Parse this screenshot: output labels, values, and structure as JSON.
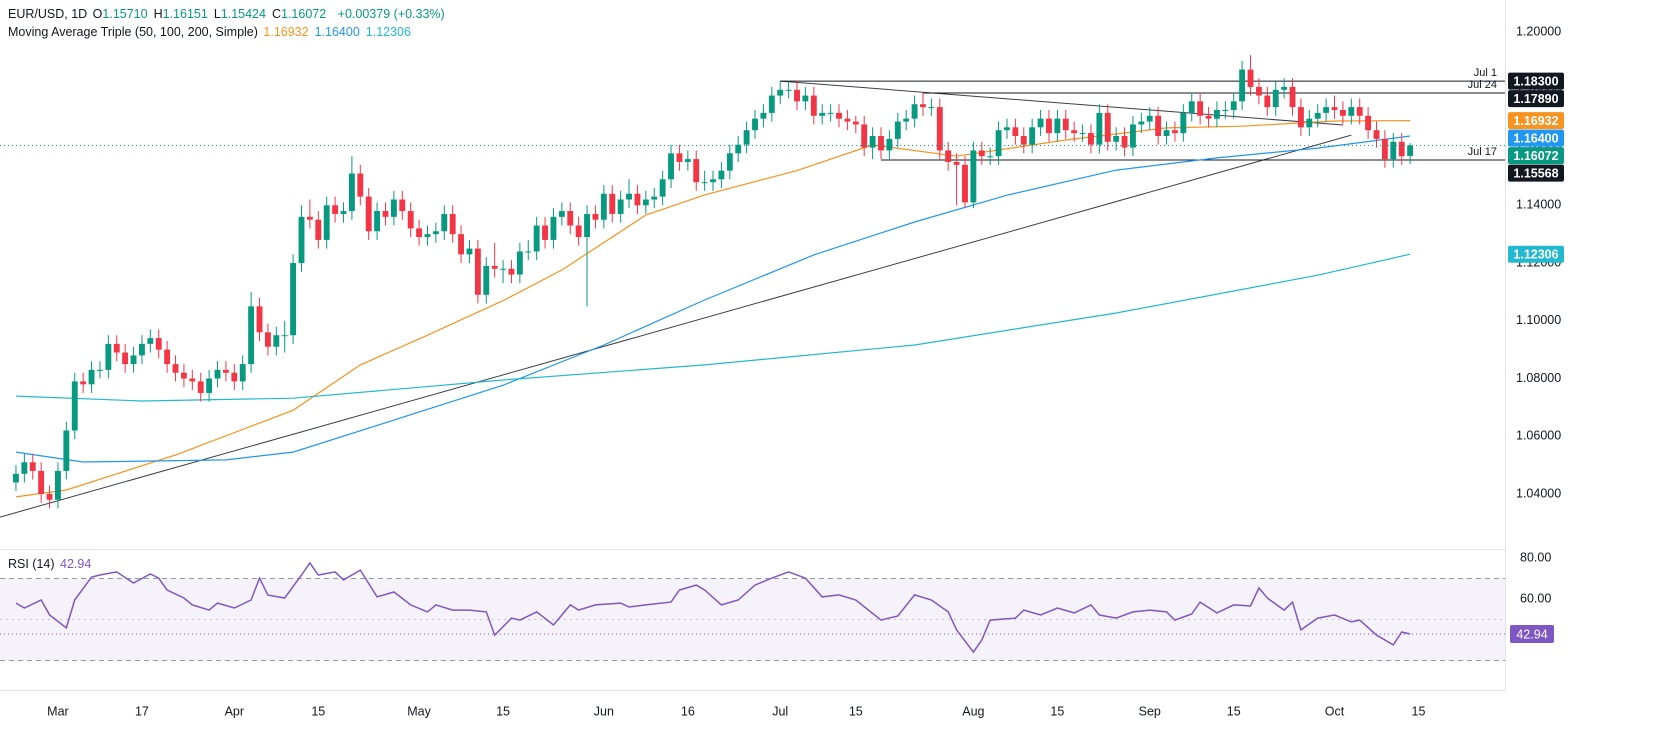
{
  "chart_data": [
    {
      "type": "candlestick",
      "title": "EUR/USD, 1D",
      "ohlc": [
        {
          "label": "O",
          "value": "1.15710"
        },
        {
          "label": "H",
          "value": "1.16151"
        },
        {
          "label": "L",
          "value": "1.15424"
        },
        {
          "label": "C",
          "value": "1.16072"
        }
      ],
      "change": "+0.00379 (+0.33%)",
      "last_label": "1.16072",
      "up_color": "#089981",
      "down_color": "#f23645",
      "xlim": [
        -1.9,
        177.3
      ],
      "xticks": [
        {
          "value": 5,
          "label": "Mar"
        },
        {
          "value": 15,
          "label": "17"
        },
        {
          "value": 26,
          "label": "Apr"
        },
        {
          "value": 36,
          "label": "15"
        },
        {
          "value": 48,
          "label": "May"
        },
        {
          "value": 58,
          "label": "15"
        },
        {
          "value": 70,
          "label": "Jun"
        },
        {
          "value": 80,
          "label": "16"
        },
        {
          "value": 91,
          "label": "Jul"
        },
        {
          "value": 100,
          "label": "15"
        },
        {
          "value": 114,
          "label": "Aug"
        },
        {
          "value": 124,
          "label": "15"
        },
        {
          "value": 135,
          "label": "Sep"
        },
        {
          "value": 145,
          "label": "15"
        },
        {
          "value": 157,
          "label": "Oct"
        },
        {
          "value": 167,
          "label": "15"
        }
      ],
      "ylim": [
        1.0213,
        1.2111
      ],
      "yticks": [
        {
          "value": 1.04,
          "label": "1.04000"
        },
        {
          "value": 1.06,
          "label": "1.06000"
        },
        {
          "value": 1.08,
          "label": "1.08000"
        },
        {
          "value": 1.1,
          "label": "1.10000"
        },
        {
          "value": 1.12,
          "label": "1.12000"
        },
        {
          "value": 1.14,
          "label": "1.14000"
        },
        {
          "value": 1.16,
          "label": "1.16000"
        },
        {
          "value": 1.18,
          "label": "1.18000"
        },
        {
          "value": 1.2,
          "label": "1.20000"
        }
      ],
      "open": [
        1.044,
        1.047,
        1.051,
        1.048,
        1.04,
        1.038,
        1.048,
        1.062,
        1.079,
        1.078,
        1.083,
        1.083,
        1.092,
        1.089,
        1.085,
        1.088,
        1.092,
        1.094,
        1.09,
        1.085,
        1.082,
        1.08,
        1.079,
        1.075,
        1.08,
        1.083,
        1.082,
        1.079,
        1.085,
        1.105,
        1.096,
        1.091,
        1.095,
        1.095,
        1.12,
        1.136,
        1.135,
        1.128,
        1.14,
        1.137,
        1.138,
        1.151,
        1.143,
        1.131,
        1.138,
        1.136,
        1.142,
        1.138,
        1.132,
        1.129,
        1.13,
        1.131,
        1.137,
        1.13,
        1.123,
        1.125,
        1.109,
        1.119,
        1.118,
        1.118,
        1.116,
        1.124,
        1.124,
        1.133,
        1.128,
        1.136,
        1.138,
        1.133,
        1.129,
        1.137,
        1.135,
        1.144,
        1.137,
        1.142,
        1.144,
        1.14,
        1.142,
        1.143,
        1.149,
        1.158,
        1.155,
        1.156,
        1.148,
        1.148,
        1.149,
        1.152,
        1.158,
        1.161,
        1.166,
        1.17,
        1.172,
        1.178,
        1.18,
        1.18,
        1.176,
        1.178,
        1.171,
        1.172,
        1.172,
        1.17,
        1.169,
        1.168,
        1.16,
        1.164,
        1.159,
        1.163,
        1.169,
        1.17,
        1.175,
        1.174,
        1.174,
        1.159,
        1.155,
        1.154,
        1.141,
        1.159,
        1.157,
        1.157,
        1.166,
        1.167,
        1.164,
        1.161,
        1.167,
        1.17,
        1.165,
        1.17,
        1.166,
        1.165,
        1.165,
        1.161,
        1.172,
        1.162,
        1.164,
        1.16,
        1.168,
        1.169,
        1.171,
        1.164,
        1.166,
        1.165,
        1.172,
        1.176,
        1.171,
        1.17,
        1.173,
        1.173,
        1.176,
        1.187,
        1.181,
        1.178,
        1.174,
        1.18,
        1.181,
        1.174,
        1.167,
        1.17,
        1.172,
        1.174,
        1.173,
        1.171,
        1.174,
        1.171,
        1.166,
        1.163,
        1.156,
        1.162,
        1.1571
      ],
      "high": [
        1.05,
        1.054,
        1.054,
        1.051,
        1.043,
        1.051,
        1.065,
        1.082,
        1.082,
        1.086,
        1.086,
        1.095,
        1.095,
        1.092,
        1.091,
        1.095,
        1.097,
        1.097,
        1.093,
        1.088,
        1.085,
        1.083,
        1.082,
        1.083,
        1.086,
        1.086,
        1.085,
        1.088,
        1.11,
        1.108,
        1.099,
        1.098,
        1.1,
        1.123,
        1.14,
        1.142,
        1.138,
        1.143,
        1.143,
        1.141,
        1.157,
        1.154,
        1.146,
        1.141,
        1.141,
        1.145,
        1.145,
        1.141,
        1.135,
        1.133,
        1.134,
        1.14,
        1.14,
        1.133,
        1.128,
        1.128,
        1.122,
        1.127,
        1.121,
        1.121,
        1.127,
        1.128,
        1.136,
        1.136,
        1.139,
        1.141,
        1.141,
        1.136,
        1.14,
        1.14,
        1.147,
        1.147,
        1.145,
        1.149,
        1.147,
        1.145,
        1.146,
        1.152,
        1.161,
        1.161,
        1.159,
        1.159,
        1.152,
        1.152,
        1.155,
        1.161,
        1.164,
        1.169,
        1.173,
        1.175,
        1.181,
        1.183,
        1.183,
        1.183,
        1.181,
        1.181,
        1.175,
        1.175,
        1.175,
        1.173,
        1.171,
        1.171,
        1.167,
        1.167,
        1.166,
        1.172,
        1.173,
        1.178,
        1.179,
        1.177,
        1.177,
        1.162,
        1.158,
        1.157,
        1.162,
        1.162,
        1.16,
        1.169,
        1.17,
        1.17,
        1.167,
        1.17,
        1.173,
        1.173,
        1.173,
        1.173,
        1.169,
        1.168,
        1.168,
        1.175,
        1.175,
        1.167,
        1.167,
        1.171,
        1.172,
        1.174,
        1.174,
        1.169,
        1.169,
        1.175,
        1.179,
        1.179,
        1.174,
        1.176,
        1.176,
        1.179,
        1.19,
        1.192,
        1.184,
        1.181,
        1.183,
        1.184,
        1.184,
        1.177,
        1.173,
        1.175,
        1.177,
        1.178,
        1.176,
        1.177,
        1.177,
        1.174,
        1.169,
        1.166,
        1.165,
        1.165,
        1.16151
      ],
      "low": [
        1.041,
        1.044,
        1.045,
        1.037,
        1.035,
        1.035,
        1.045,
        1.059,
        1.075,
        1.075,
        1.08,
        1.08,
        1.086,
        1.082,
        1.082,
        1.085,
        1.089,
        1.087,
        1.082,
        1.079,
        1.077,
        1.076,
        1.072,
        1.072,
        1.077,
        1.079,
        1.076,
        1.076,
        1.082,
        1.093,
        1.088,
        1.088,
        1.089,
        1.092,
        1.117,
        1.132,
        1.125,
        1.125,
        1.134,
        1.134,
        1.135,
        1.14,
        1.128,
        1.128,
        1.133,
        1.133,
        1.135,
        1.129,
        1.126,
        1.126,
        1.127,
        1.128,
        1.127,
        1.12,
        1.12,
        1.106,
        1.106,
        1.115,
        1.113,
        1.113,
        1.113,
        1.121,
        1.121,
        1.125,
        1.125,
        1.133,
        1.13,
        1.126,
        1.105,
        1.132,
        1.132,
        1.134,
        1.134,
        1.139,
        1.137,
        1.137,
        1.139,
        1.14,
        1.146,
        1.152,
        1.152,
        1.145,
        1.145,
        1.145,
        1.146,
        1.149,
        1.155,
        1.158,
        1.163,
        1.167,
        1.169,
        1.175,
        1.177,
        1.173,
        1.173,
        1.168,
        1.168,
        1.169,
        1.167,
        1.166,
        1.165,
        1.157,
        1.156,
        1.156,
        1.156,
        1.16,
        1.166,
        1.167,
        1.171,
        1.171,
        1.156,
        1.152,
        1.14,
        1.139,
        1.139,
        1.154,
        1.154,
        1.154,
        1.163,
        1.161,
        1.158,
        1.158,
        1.164,
        1.162,
        1.162,
        1.163,
        1.162,
        1.162,
        1.158,
        1.158,
        1.159,
        1.159,
        1.157,
        1.157,
        1.165,
        1.166,
        1.161,
        1.161,
        1.162,
        1.162,
        1.169,
        1.168,
        1.167,
        1.167,
        1.17,
        1.17,
        1.173,
        1.178,
        1.175,
        1.171,
        1.171,
        1.177,
        1.171,
        1.164,
        1.164,
        1.167,
        1.169,
        1.17,
        1.168,
        1.168,
        1.168,
        1.163,
        1.16,
        1.153,
        1.153,
        1.154,
        1.15424
      ],
      "close": [
        1.047,
        1.051,
        1.048,
        1.04,
        1.038,
        1.048,
        1.062,
        1.079,
        1.078,
        1.083,
        1.083,
        1.092,
        1.089,
        1.085,
        1.088,
        1.092,
        1.094,
        1.09,
        1.085,
        1.082,
        1.08,
        1.079,
        1.075,
        1.08,
        1.083,
        1.082,
        1.079,
        1.085,
        1.105,
        1.096,
        1.091,
        1.095,
        1.095,
        1.12,
        1.136,
        1.135,
        1.128,
        1.14,
        1.137,
        1.138,
        1.151,
        1.143,
        1.131,
        1.138,
        1.136,
        1.142,
        1.138,
        1.132,
        1.129,
        1.13,
        1.131,
        1.137,
        1.13,
        1.123,
        1.125,
        1.109,
        1.119,
        1.118,
        1.118,
        1.116,
        1.124,
        1.124,
        1.133,
        1.128,
        1.136,
        1.138,
        1.133,
        1.129,
        1.137,
        1.135,
        1.144,
        1.137,
        1.142,
        1.144,
        1.14,
        1.142,
        1.143,
        1.149,
        1.158,
        1.155,
        1.156,
        1.148,
        1.148,
        1.149,
        1.152,
        1.158,
        1.161,
        1.166,
        1.17,
        1.172,
        1.178,
        1.18,
        1.18,
        1.176,
        1.178,
        1.171,
        1.172,
        1.172,
        1.17,
        1.169,
        1.168,
        1.16,
        1.164,
        1.159,
        1.163,
        1.169,
        1.17,
        1.175,
        1.174,
        1.174,
        1.159,
        1.155,
        1.154,
        1.141,
        1.159,
        1.157,
        1.157,
        1.166,
        1.167,
        1.164,
        1.161,
        1.167,
        1.17,
        1.165,
        1.17,
        1.166,
        1.165,
        1.165,
        1.161,
        1.172,
        1.162,
        1.164,
        1.16,
        1.168,
        1.169,
        1.171,
        1.164,
        1.166,
        1.165,
        1.172,
        1.176,
        1.171,
        1.17,
        1.173,
        1.173,
        1.176,
        1.187,
        1.181,
        1.178,
        1.174,
        1.18,
        1.181,
        1.174,
        1.167,
        1.17,
        1.172,
        1.174,
        1.173,
        1.171,
        1.174,
        1.171,
        1.166,
        1.163,
        1.156,
        1.162,
        1.157,
        1.16072
      ],
      "indicator": {
        "name": "Moving Average Triple (50, 100, 200, Simple)",
        "series": [
          {
            "color": "#f7931e",
            "value_label": "1.16932",
            "x": [
              0,
              6,
              19,
              33,
              41,
              49,
              58,
              65,
              75,
              82,
              93,
              102,
              112,
              125,
              137,
              146,
              157,
              166
            ],
            "values": [
              1.039,
              1.0414,
              1.0535,
              1.069,
              1.0847,
              1.095,
              1.107,
              1.1176,
              1.1366,
              1.1436,
              1.152,
              1.1609,
              1.157,
              1.1626,
              1.1668,
              1.1674,
              1.1692,
              1.16932
            ]
          },
          {
            "color": "#2196f3",
            "value_label": "1.16400",
            "x": [
              0,
              8,
              25,
              33,
              45,
              58,
              70,
              82,
              95,
              107,
              118,
              131,
              143,
              155,
              166
            ],
            "values": [
              1.0545,
              1.0511,
              1.0518,
              1.0545,
              1.0656,
              1.0777,
              1.0916,
              1.1072,
              1.1228,
              1.1342,
              1.1435,
              1.1522,
              1.1564,
              1.1598,
              1.164
            ]
          },
          {
            "color": "#22b8cf",
            "value_label": "1.12306",
            "x": [
              0,
              15,
              33,
              58,
              82,
              107,
              131,
              155,
              166
            ],
            "values": [
              1.0739,
              1.0722,
              1.0732,
              1.0795,
              1.0847,
              1.0916,
              1.1027,
              1.1158,
              1.12306
            ]
          }
        ]
      },
      "levels": [
        {
          "label": "Jul 1",
          "value": 1.183,
          "value_label": "1.18300",
          "start": 91
        },
        {
          "label": "Jul 24",
          "value": 1.1789,
          "value_label": "1.17890",
          "start": 108
        },
        {
          "label": "Jul 17",
          "value": 1.15568,
          "value_label": "1.15568",
          "start": 103
        }
      ],
      "trendlines": [
        {
          "x": [
            91,
            158
          ],
          "y": [
            1.183,
            1.1678
          ]
        },
        {
          "x": [
            -1.9,
            159
          ],
          "y": [
            1.032,
            1.1643
          ]
        }
      ]
    },
    {
      "type": "line",
      "title": "RSI (14)",
      "value_label": "42.94",
      "color": "#7e57c2",
      "xlim": [
        -1.9,
        177.3
      ],
      "ylim": [
        15.6,
        83.9
      ],
      "yticks": [
        {
          "value": 80,
          "label": "80.00"
        },
        {
          "value": 60,
          "label": "60.00"
        }
      ],
      "levels": [
        70,
        50,
        30
      ],
      "x": [
        0,
        1,
        3,
        4,
        6,
        7,
        9,
        10,
        12,
        14,
        16,
        17,
        18,
        20,
        21,
        23,
        24,
        26,
        28,
        29,
        30,
        32,
        34,
        35,
        36,
        38,
        39,
        41,
        43,
        45,
        47,
        49,
        50,
        52,
        54,
        56,
        57,
        59,
        60,
        62,
        64,
        66,
        67,
        69,
        72,
        73,
        75,
        78,
        79,
        81,
        82,
        84,
        86,
        88,
        90,
        92,
        94,
        96,
        98,
        100,
        103,
        105,
        107,
        109,
        111,
        112,
        114,
        115,
        116,
        119,
        120,
        122,
        124,
        126,
        128,
        129,
        131,
        133,
        135,
        137,
        138,
        140,
        141,
        143,
        145,
        147,
        148,
        149,
        151,
        152,
        153,
        155,
        157,
        159,
        160,
        162,
        164,
        165,
        166
      ],
      "values": [
        58.0,
        55.6,
        59.5,
        52.2,
        45.9,
        59.5,
        70.7,
        71.7,
        73.2,
        67.8,
        72.2,
        70.2,
        64.4,
        60.5,
        57.1,
        54.6,
        58.0,
        55.6,
        59.5,
        70.2,
        61.9,
        60.5,
        71.7,
        77.6,
        71.7,
        73.2,
        69.3,
        74.1,
        61.0,
        63.4,
        57.1,
        53.7,
        57.1,
        54.6,
        54.6,
        53.7,
        42.4,
        50.7,
        49.7,
        53.7,
        47.3,
        57.1,
        54.6,
        57.1,
        58.0,
        56.1,
        57.1,
        58.5,
        64.4,
        66.8,
        64.4,
        57.1,
        59.5,
        66.8,
        70.2,
        73.2,
        70.2,
        61.0,
        62.0,
        59.5,
        49.7,
        51.7,
        62.0,
        59.5,
        53.7,
        44.9,
        34.1,
        40.0,
        49.7,
        50.7,
        54.6,
        52.2,
        55.6,
        53.2,
        57.1,
        52.2,
        50.7,
        53.7,
        54.6,
        53.7,
        49.7,
        52.7,
        58.5,
        53.2,
        57.1,
        56.6,
        65.4,
        60.5,
        54.6,
        58.5,
        44.9,
        50.7,
        52.2,
        48.8,
        49.7,
        42.4,
        37.6,
        43.9,
        42.94
      ]
    }
  ]
}
